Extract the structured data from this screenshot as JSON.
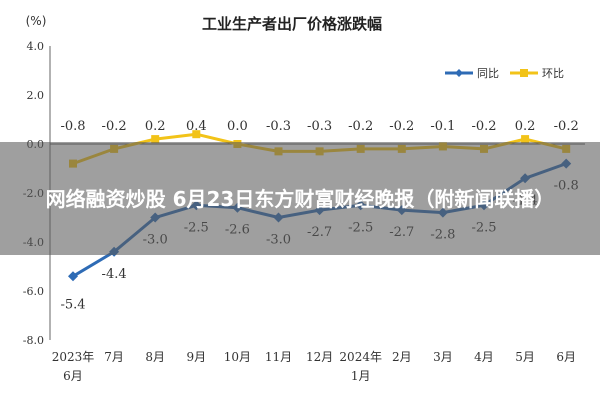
{
  "banner": {
    "headline": "网络融资炒股 6月23日东方财富财经晚报（附新闻联播）"
  },
  "chart_data": {
    "type": "line",
    "title": "工业生产者出厂价格涨跌幅",
    "ylabel": "(%)",
    "xlabel": "",
    "ylim": [
      -8.0,
      4.0
    ],
    "yticks": [
      "4.0",
      "2.0",
      "0.0",
      "-2.0",
      "-4.0",
      "-6.0",
      "-8.0"
    ],
    "categories": [
      [
        "2023年",
        "6月"
      ],
      [
        "7月"
      ],
      [
        "8月"
      ],
      [
        "9月"
      ],
      [
        "10月"
      ],
      [
        "11月"
      ],
      [
        "12月"
      ],
      [
        "2024年",
        "1月"
      ],
      [
        "2月"
      ],
      [
        "3月"
      ],
      [
        "4月"
      ],
      [
        "5月"
      ],
      [
        "6月"
      ]
    ],
    "legend_position": "top-right",
    "grid": false,
    "series": [
      {
        "name": "同比",
        "color": "#2e6bb5",
        "values": [
          -5.4,
          -4.4,
          -3.0,
          -2.5,
          -2.6,
          -3.0,
          -2.7,
          -2.5,
          -2.7,
          -2.8,
          -2.5,
          -1.4,
          -0.8
        ],
        "labels": [
          "-5.4",
          "-4.4",
          "-3.0",
          "-2.5",
          "-2.6",
          "-3.0",
          "-2.7",
          "-2.5",
          "-2.7",
          "-2.8",
          "-2.5",
          "-1.4",
          "-0.8"
        ]
      },
      {
        "name": "环比",
        "color": "#f2c318",
        "values": [
          -0.8,
          -0.2,
          0.2,
          0.4,
          0.0,
          -0.3,
          -0.3,
          -0.2,
          -0.2,
          -0.1,
          -0.2,
          0.2,
          -0.2
        ],
        "labels": [
          "-0.8",
          "-0.2",
          "0.2",
          "0.4",
          "0.0",
          "-0.3",
          "-0.3",
          "-0.2",
          "-0.2",
          "-0.1",
          "-0.2",
          "0.2",
          "-0.2"
        ]
      }
    ]
  }
}
